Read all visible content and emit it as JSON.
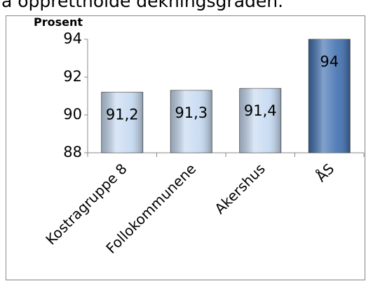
{
  "heading": "å opprettholde dekningsgraden.",
  "chart_data": {
    "type": "bar",
    "y_label": "Prosent",
    "categories": [
      "Kostragruppe 8",
      "Follokommunene",
      "Akershus",
      "ÅS"
    ],
    "values": [
      91.2,
      91.3,
      91.4,
      94
    ],
    "value_labels": [
      "91,2",
      "91,3",
      "91,4",
      "94"
    ],
    "colors": [
      "#c5d9f1",
      "#c5d9f1",
      "#c5d9f1",
      "#3f6fb0"
    ],
    "ylim": [
      88,
      94
    ],
    "yticks": [
      88,
      90,
      92,
      94
    ],
    "grid": false
  }
}
